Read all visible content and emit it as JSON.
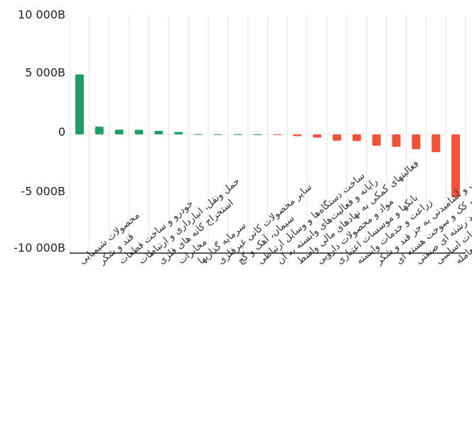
{
  "chart_data": {
    "type": "bar",
    "title": "",
    "xlabel": "",
    "ylabel": "",
    "ylim": [
      -10000,
      10000
    ],
    "yticks": [
      {
        "value": 10000,
        "label": "10 000B"
      },
      {
        "value": 5000,
        "label": "5 000B"
      },
      {
        "value": 0,
        "label": "0"
      },
      {
        "value": -5000,
        "label": "-5 000B"
      },
      {
        "value": -10000,
        "label": "-10 000B"
      }
    ],
    "grid": true,
    "legend": "none",
    "positive_color": "#1f9e63",
    "negative_color": "#f0533a",
    "categories": [
      "محصولات شیمیایی",
      "قند و شکر",
      "خودرو و ساخت قطعات",
      "حمل ونقل، انبارداری و ارتباطات",
      "استخراج کانه های فلزی",
      "مخابرات",
      "سرمایه گذاریها",
      "سایر محصولات کانی غیرفلزی",
      "سیمان، آهک و گچ",
      "ساخت دستگاه‌ها و وسایل ارتباطی",
      "رایانه و فعالیت‌های وابسته به آن",
      "فعالیتهای کمکی به نهادهای مالی واسط",
      "مواد و محصولات دارویی",
      "بانکها و موسسات اعتباری",
      "زراعت و خدمات وابسته",
      "محصولات غذایی و آشامیدنی به جز قند و شکر",
      "فراورده های نفتی، کک و سوخت هسته ای",
      "شرکتهای چند رشته ای صنعتی",
      "فلزات اساسی",
      "صندوق سرمایه گذاری قابل معامله"
    ],
    "values": [
      5050,
      650,
      400,
      380,
      300,
      200,
      20,
      10,
      5,
      0,
      -60,
      -150,
      -280,
      -530,
      -560,
      -960,
      -1050,
      -1250,
      -1500,
      -5300
    ]
  }
}
